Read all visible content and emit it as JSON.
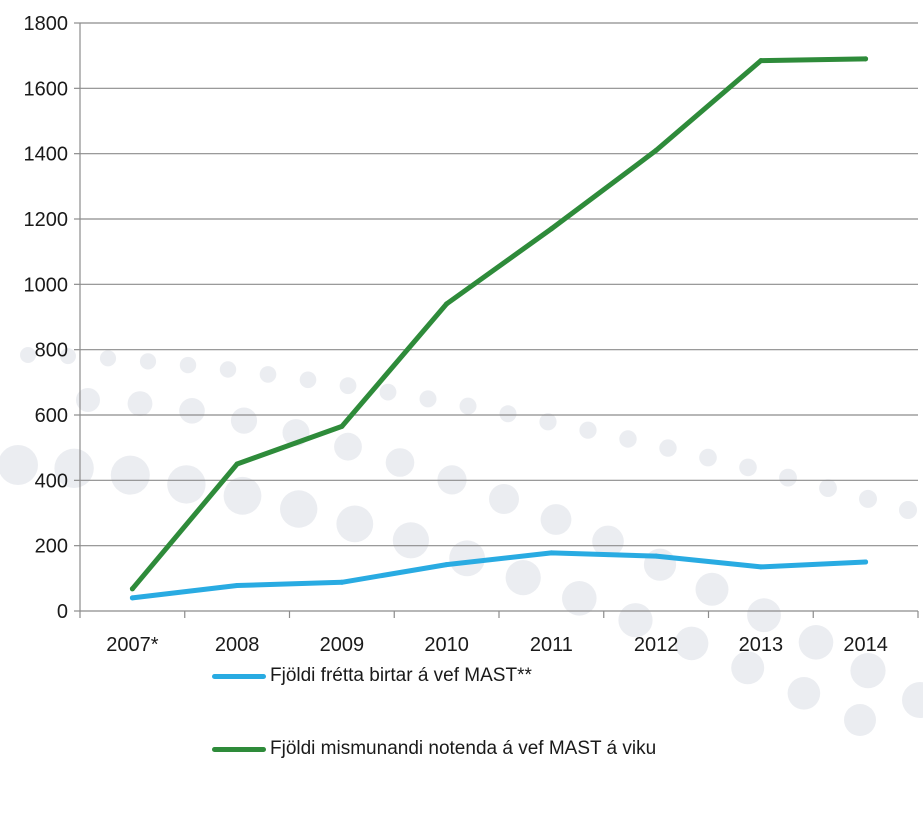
{
  "chart_data": {
    "type": "line",
    "categories": [
      "2007*",
      "2008",
      "2009",
      "2010",
      "2011",
      "2012",
      "2013",
      "2014"
    ],
    "series": [
      {
        "name": "Fjöldi frétta birtar á vef MAST**",
        "color": "#29abe2",
        "values": [
          40,
          78,
          88,
          142,
          178,
          168,
          135,
          150
        ]
      },
      {
        "name": "Fjöldi mismunandi notenda á vef MAST á viku",
        "color": "#2e8b3a",
        "values": [
          68,
          450,
          565,
          940,
          1170,
          1410,
          1685,
          1690
        ]
      }
    ],
    "ylim": [
      0,
      1800
    ],
    "yticks": [
      0,
      200,
      400,
      600,
      800,
      1000,
      1200,
      1400,
      1600,
      1800
    ],
    "grid": true,
    "legend_position": "bottom"
  }
}
